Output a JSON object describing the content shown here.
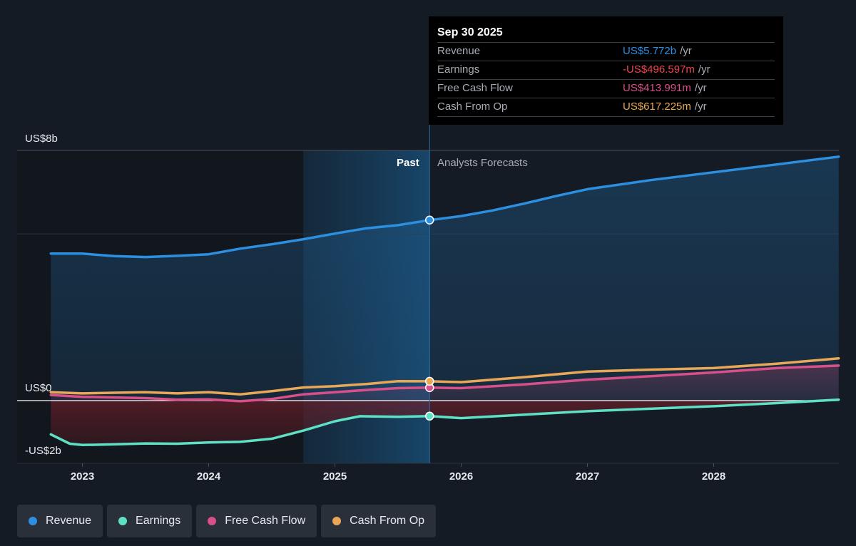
{
  "tooltip": {
    "date": "Sep 30 2025",
    "rows": [
      {
        "label": "Revenue",
        "value": "US$5.772b",
        "unit": "/yr",
        "color": "#2d8fe0"
      },
      {
        "label": "Earnings",
        "value": "-US$496.597m",
        "unit": "/yr",
        "color": "#ef4550"
      },
      {
        "label": "Free Cash Flow",
        "value": "US$413.991m",
        "unit": "/yr",
        "color": "#d8508a"
      },
      {
        "label": "Cash From Op",
        "value": "US$617.225m",
        "unit": "/yr",
        "color": "#e8a857"
      }
    ]
  },
  "section_labels": {
    "past": "Past",
    "forecast": "Analysts Forecasts"
  },
  "legend": [
    {
      "label": "Revenue",
      "color": "#2d8fe0"
    },
    {
      "label": "Earnings",
      "color": "#5ee0c5"
    },
    {
      "label": "Free Cash Flow",
      "color": "#d8508a"
    },
    {
      "label": "Cash From Op",
      "color": "#e8a857"
    }
  ],
  "chart_data": {
    "type": "line",
    "y_unit": "US$ billions",
    "ylim": [
      -2,
      8
    ],
    "y_tick_labels": [
      {
        "value": 8,
        "label": "US$8b"
      },
      {
        "value": 0,
        "label": "US$0"
      },
      {
        "value": -2,
        "label": "-US$2b"
      }
    ],
    "x_tick_labels": [
      "2023",
      "2024",
      "2025",
      "2026",
      "2027",
      "2028"
    ],
    "xlim": [
      2022.45,
      2028.99
    ],
    "past_end": 2025.75,
    "highlight_start": 2024.75,
    "series": [
      {
        "name": "Revenue",
        "color": "#2d8fe0",
        "points": [
          [
            2022.75,
            4.7
          ],
          [
            2023.0,
            4.7
          ],
          [
            2023.25,
            4.62
          ],
          [
            2023.5,
            4.59
          ],
          [
            2023.75,
            4.63
          ],
          [
            2024.0,
            4.68
          ],
          [
            2024.25,
            4.86
          ],
          [
            2024.5,
            5.0
          ],
          [
            2024.75,
            5.16
          ],
          [
            2025.0,
            5.34
          ],
          [
            2025.25,
            5.51
          ],
          [
            2025.5,
            5.61
          ],
          [
            2025.75,
            5.772
          ],
          [
            2026.0,
            5.9
          ],
          [
            2026.25,
            6.08
          ],
          [
            2026.5,
            6.3
          ],
          [
            2026.75,
            6.54
          ],
          [
            2027.0,
            6.76
          ],
          [
            2027.5,
            7.05
          ],
          [
            2028.0,
            7.3
          ],
          [
            2028.5,
            7.55
          ],
          [
            2028.99,
            7.8
          ]
        ]
      },
      {
        "name": "Earnings",
        "color": "#5ee0c5",
        "points": [
          [
            2022.75,
            -1.08
          ],
          [
            2022.9,
            -1.38
          ],
          [
            2023.0,
            -1.42
          ],
          [
            2023.25,
            -1.4
          ],
          [
            2023.5,
            -1.37
          ],
          [
            2023.75,
            -1.38
          ],
          [
            2024.0,
            -1.34
          ],
          [
            2024.25,
            -1.32
          ],
          [
            2024.5,
            -1.22
          ],
          [
            2024.75,
            -0.96
          ],
          [
            2025.0,
            -0.66
          ],
          [
            2025.2,
            -0.5
          ],
          [
            2025.5,
            -0.52
          ],
          [
            2025.75,
            -0.497
          ],
          [
            2026.0,
            -0.56
          ],
          [
            2026.5,
            -0.45
          ],
          [
            2027.0,
            -0.34
          ],
          [
            2027.5,
            -0.26
          ],
          [
            2028.0,
            -0.18
          ],
          [
            2028.5,
            -0.08
          ],
          [
            2028.99,
            0.03
          ]
        ]
      },
      {
        "name": "Free Cash Flow",
        "color": "#d8508a",
        "points": [
          [
            2022.75,
            0.18
          ],
          [
            2023.0,
            0.12
          ],
          [
            2023.25,
            0.1
          ],
          [
            2023.5,
            0.08
          ],
          [
            2023.75,
            0.03
          ],
          [
            2024.0,
            0.04
          ],
          [
            2024.25,
            -0.02
          ],
          [
            2024.5,
            0.05
          ],
          [
            2024.75,
            0.2
          ],
          [
            2025.0,
            0.27
          ],
          [
            2025.25,
            0.34
          ],
          [
            2025.5,
            0.4
          ],
          [
            2025.75,
            0.414
          ],
          [
            2026.0,
            0.4
          ],
          [
            2026.5,
            0.52
          ],
          [
            2027.0,
            0.67
          ],
          [
            2027.5,
            0.78
          ],
          [
            2028.0,
            0.9
          ],
          [
            2028.5,
            1.04
          ],
          [
            2028.99,
            1.12
          ]
        ]
      },
      {
        "name": "Cash From Op",
        "color": "#e8a857",
        "points": [
          [
            2022.75,
            0.27
          ],
          [
            2023.0,
            0.23
          ],
          [
            2023.25,
            0.25
          ],
          [
            2023.5,
            0.27
          ],
          [
            2023.75,
            0.23
          ],
          [
            2024.0,
            0.27
          ],
          [
            2024.25,
            0.2
          ],
          [
            2024.5,
            0.3
          ],
          [
            2024.75,
            0.42
          ],
          [
            2025.0,
            0.46
          ],
          [
            2025.25,
            0.53
          ],
          [
            2025.5,
            0.62
          ],
          [
            2025.75,
            0.617
          ],
          [
            2026.0,
            0.59
          ],
          [
            2026.5,
            0.75
          ],
          [
            2027.0,
            0.93
          ],
          [
            2027.5,
            0.99
          ],
          [
            2028.0,
            1.04
          ],
          [
            2028.5,
            1.18
          ],
          [
            2028.99,
            1.35
          ]
        ]
      }
    ]
  }
}
